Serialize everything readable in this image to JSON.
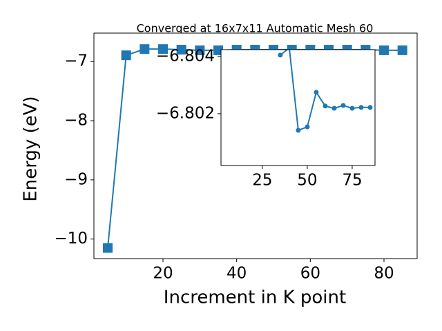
{
  "chart_data": [
    {
      "type": "line",
      "title": "Converged at 16x7x11 Automatic Mesh 60",
      "x_label": "Increment in K point",
      "y_label": "Energy (eV)",
      "x": [
        5,
        10,
        15,
        20,
        25,
        30,
        35,
        40,
        45,
        50,
        55,
        60,
        65,
        70,
        75,
        80,
        85
      ],
      "series": [
        {
          "color": "#1f77b4",
          "marker": "square",
          "values": [
            -10.15,
            -6.895,
            -6.79,
            -6.79,
            -6.8,
            -6.81,
            -6.81,
            -6.8,
            -6.8,
            -6.8,
            -6.8,
            -6.8,
            -6.8,
            -6.8,
            -6.8,
            -6.81,
            -6.81
          ]
        }
      ],
      "xlim": [
        1.25,
        89
      ],
      "ylim": [
        -10.33,
        -6.52
      ],
      "xticks": [
        20,
        40,
        60,
        80
      ],
      "yticks": [
        {
          "value": -10,
          "label": "−10"
        },
        {
          "value": -9,
          "label": "−9"
        },
        {
          "value": -8,
          "label": "−8"
        },
        {
          "value": -7,
          "label": "−7"
        }
      ]
    },
    {
      "type": "line",
      "x": [
        35,
        40,
        45,
        50,
        55,
        60,
        65,
        70,
        75,
        80,
        85
      ],
      "series": [
        {
          "color": "#1f77b4",
          "marker": "circle",
          "values": [
            -6.80405,
            -6.8043,
            -6.80142,
            -6.80154,
            -6.80275,
            -6.80227,
            -6.80219,
            -6.80229,
            -6.80219,
            -6.80222,
            -6.80222
          ]
        }
      ],
      "xlim": [
        2,
        87.7
      ],
      "ylim": [
        -6.80019,
        -6.80424
      ],
      "xticks": [
        25,
        50,
        75
      ],
      "yticks": [
        {
          "value": -6.804,
          "label": "−6.804"
        },
        {
          "value": -6.802,
          "label": "−6.802"
        }
      ]
    }
  ]
}
